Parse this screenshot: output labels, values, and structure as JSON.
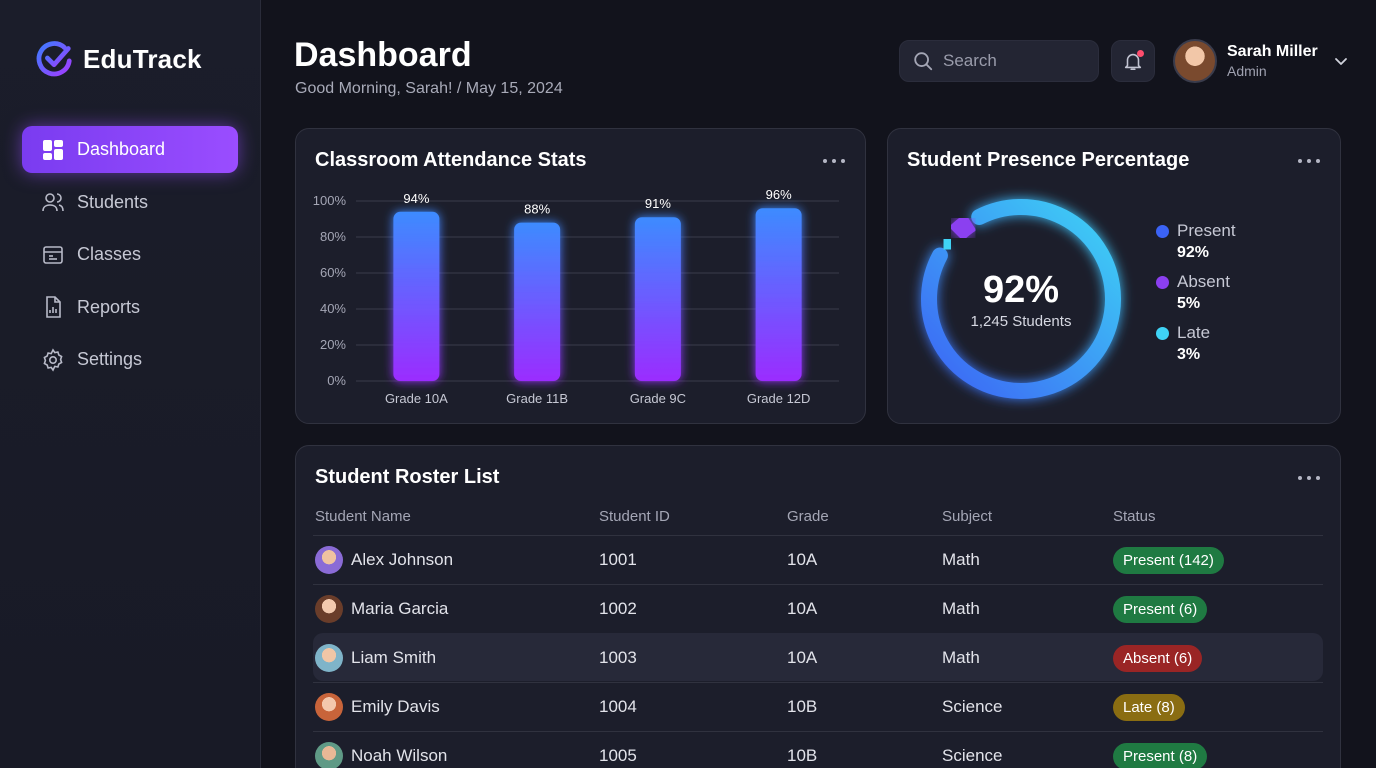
{
  "app": {
    "name": "EduTrack"
  },
  "sidebar": {
    "items": [
      {
        "label": "Dashboard",
        "icon": "dashboard-icon",
        "active": true
      },
      {
        "label": "Students",
        "icon": "users-icon",
        "active": false
      },
      {
        "label": "Classes",
        "icon": "classes-icon",
        "active": false
      },
      {
        "label": "Reports",
        "icon": "reports-icon",
        "active": false
      },
      {
        "label": "Settings",
        "icon": "gear-icon",
        "active": false
      }
    ]
  },
  "header": {
    "title": "Dashboard",
    "subtitle": "Good Morning, Sarah! / May 15, 2024",
    "search_placeholder": "Search",
    "notifications_unread": true,
    "user": {
      "name": "Sarah Miller",
      "role": "Admin"
    }
  },
  "attendance_card": {
    "title": "Classroom Attendance Stats"
  },
  "presence_card": {
    "title": "Student Presence Percentage",
    "center_value": "92%",
    "center_caption": "1,245 Students",
    "legend": [
      {
        "label": "Present",
        "value": "92%",
        "color": "#3b63f5"
      },
      {
        "label": "Absent",
        "value": "5%",
        "color": "#8b3ff0"
      },
      {
        "label": "Late",
        "value": "3%",
        "color": "#3fd3f5"
      }
    ]
  },
  "chart_data": [
    {
      "type": "bar",
      "title": "Classroom Attendance Stats",
      "categories": [
        "Grade 10A",
        "Grade 11B",
        "Grade 9C",
        "Grade 12D"
      ],
      "values": [
        94,
        88,
        91,
        96
      ],
      "value_labels": [
        "94%",
        "88%",
        "91%",
        "96%"
      ],
      "y_ticks": [
        "100%",
        "80%",
        "60%",
        "40%",
        "20%",
        "0%"
      ],
      "ylim": [
        0,
        100
      ],
      "grid": true,
      "colors": {
        "bar_top": "#3d8bff",
        "bar_bottom": "#9b2cff"
      }
    },
    {
      "type": "pie",
      "title": "Student Presence Percentage",
      "labels": [
        "Present",
        "Absent",
        "Late"
      ],
      "values": [
        92,
        5,
        3
      ],
      "colors": [
        "#3b63f5",
        "#8b3ff0",
        "#3fd3f5"
      ],
      "style": "donut"
    }
  ],
  "roster": {
    "title": "Student Roster List",
    "columns": [
      "Student Name",
      "Student ID",
      "Grade",
      "Subject",
      "Status"
    ],
    "rows": [
      {
        "name": "Alex Johnson",
        "id": "1001",
        "grade": "10A",
        "subject": "Math",
        "status": "Present (142)",
        "status_type": "present"
      },
      {
        "name": "Maria Garcia",
        "id": "1002",
        "grade": "10A",
        "subject": "Math",
        "status": "Present (6)",
        "status_type": "present"
      },
      {
        "name": "Liam Smith",
        "id": "1003",
        "grade": "10A",
        "subject": "Math",
        "status": "Absent (6)",
        "status_type": "absent",
        "highlighted": true
      },
      {
        "name": "Emily Davis",
        "id": "1004",
        "grade": "10B",
        "subject": "Science",
        "status": "Late (8)",
        "status_type": "late"
      },
      {
        "name": "Noah Wilson",
        "id": "1005",
        "grade": "10B",
        "subject": "Science",
        "status": "Present (8)",
        "status_type": "present"
      }
    ]
  },
  "colors": {
    "accent": "#8b45f7",
    "status_present": "#1f7a42",
    "status_absent": "#9a2525",
    "status_late": "#8a6d12"
  }
}
